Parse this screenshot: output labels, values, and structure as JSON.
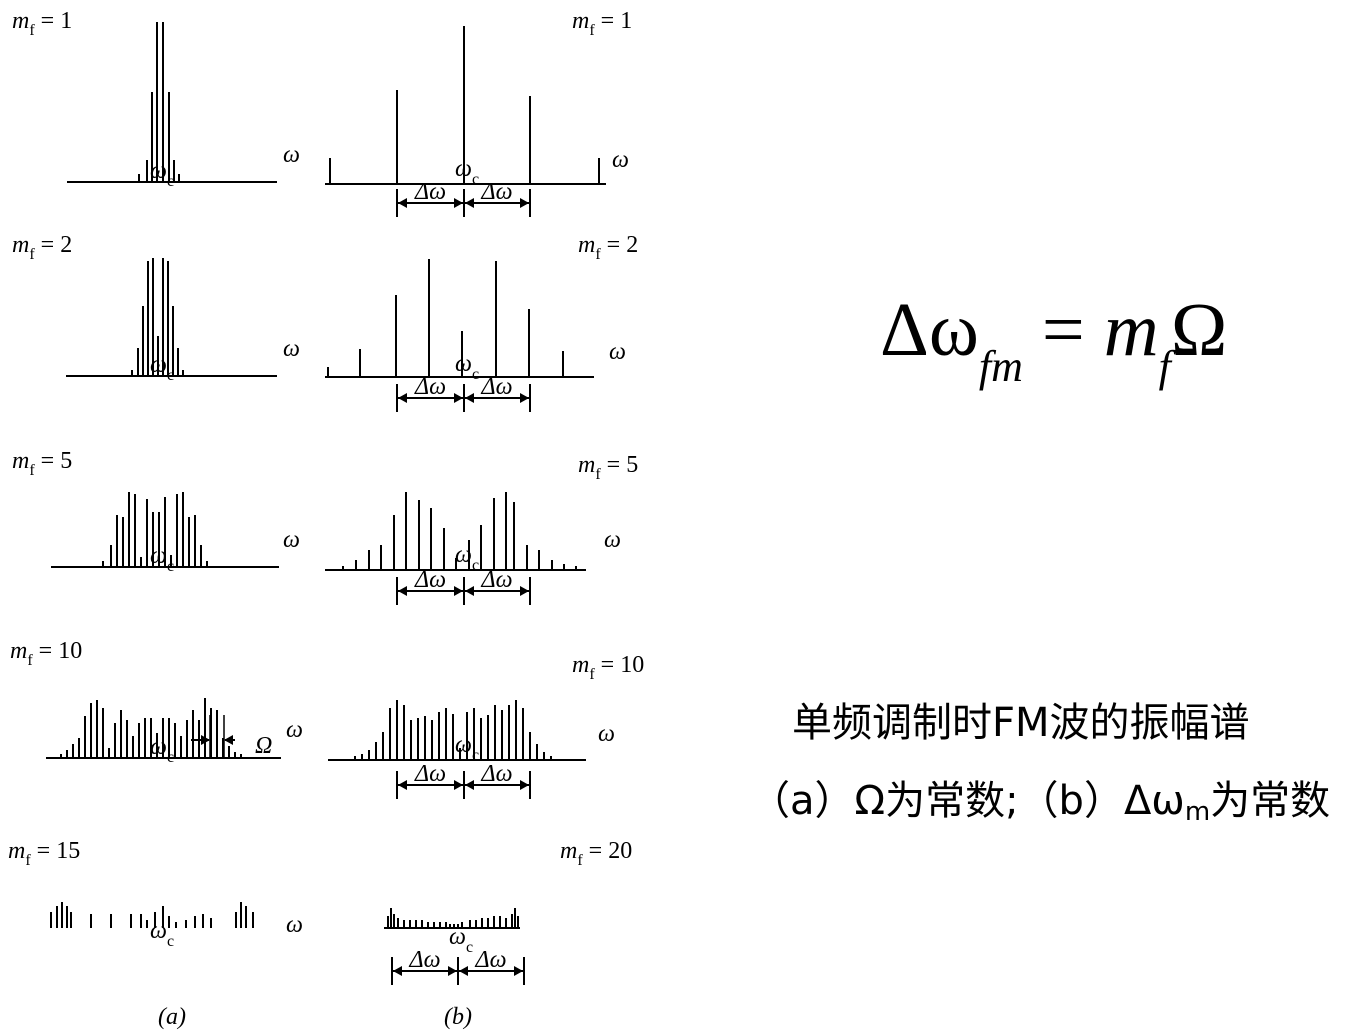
{
  "panel_labels": [
    "(a)",
    "(b)"
  ],
  "axis_symbol": "ω",
  "carrier_label": {
    "main": "ω",
    "sub": "c"
  },
  "delta_label": "Δω",
  "omega_symbol": "Ω",
  "rows_a": [
    {
      "mf_label": "m",
      "mf_sub": "f",
      "mf_value": "= 1"
    },
    {
      "mf_label": "m",
      "mf_sub": "f",
      "mf_value": "= 2"
    },
    {
      "mf_label": "m",
      "mf_sub": "f",
      "mf_value": "= 5"
    },
    {
      "mf_label": "m",
      "mf_sub": "f",
      "mf_value": "= 10"
    },
    {
      "mf_label": "m",
      "mf_sub": "f",
      "mf_value": "= 15"
    }
  ],
  "rows_b": [
    {
      "mf_label": "m",
      "mf_sub": "f",
      "mf_value": "= 1"
    },
    {
      "mf_label": "m",
      "mf_sub": "f",
      "mf_value": "= 2"
    },
    {
      "mf_label": "m",
      "mf_sub": "f",
      "mf_value": "= 5"
    },
    {
      "mf_label": "m",
      "mf_sub": "f",
      "mf_value": "= 10"
    },
    {
      "mf_label": "m",
      "mf_sub": "f",
      "mf_value": "= 20"
    }
  ],
  "formula": {
    "lhs": "Δω",
    "lhs_sub": "fm",
    "eq": "=",
    "m": "m",
    "m_sub": "f",
    "rhs": "Ω"
  },
  "caption": {
    "line1": "单频调制时FM波的振幅谱",
    "line2_a": "（a）Ω为常数;（b）Δω",
    "line2_sub": "m",
    "line2_b": "为常数"
  }
}
